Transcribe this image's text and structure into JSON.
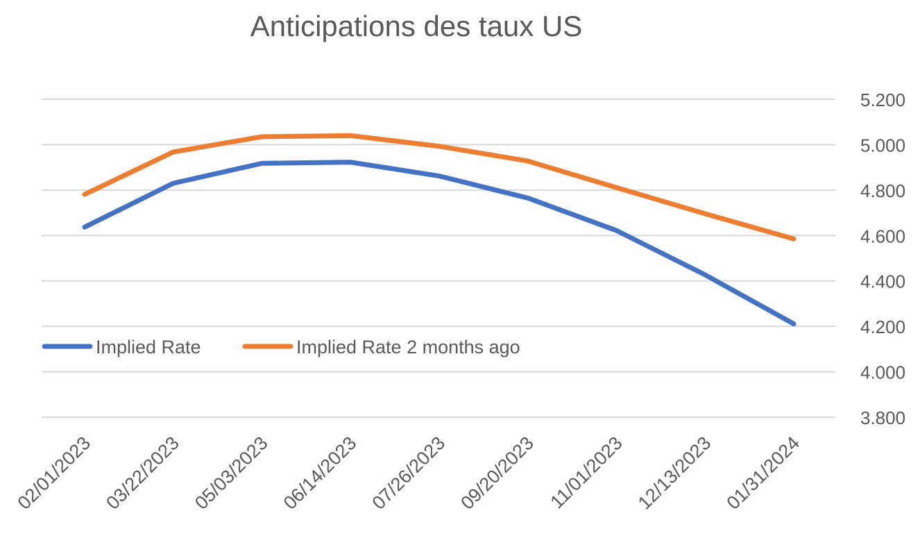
{
  "chart_data": {
    "type": "line",
    "title": "Anticipations des taux US",
    "xlabel": "",
    "ylabel": "",
    "categories": [
      "02/01/2023",
      "03/22/2023",
      "05/03/2023",
      "06/14/2023",
      "07/26/2023",
      "09/20/2023",
      "11/01/2023",
      "12/13/2023",
      "01/31/2024"
    ],
    "series": [
      {
        "name": "Implied Rate",
        "color": "#4472C4",
        "values": [
          4.637,
          4.83,
          4.918,
          4.923,
          4.862,
          4.765,
          4.622,
          4.427,
          4.211
        ]
      },
      {
        "name": "Implied Rate 2 months ago",
        "color": "#ED7D31",
        "values": [
          4.781,
          4.968,
          5.035,
          5.04,
          4.993,
          4.928,
          4.811,
          4.696,
          4.585
        ]
      }
    ],
    "ylim": [
      3.8,
      5.2
    ],
    "yticks": [
      "5.200",
      "5.000",
      "4.800",
      "4.600",
      "4.400",
      "4.200",
      "4.000",
      "3.800"
    ],
    "y_axis_position": "right",
    "grid": true,
    "legend_position": "inside-lower-left"
  }
}
